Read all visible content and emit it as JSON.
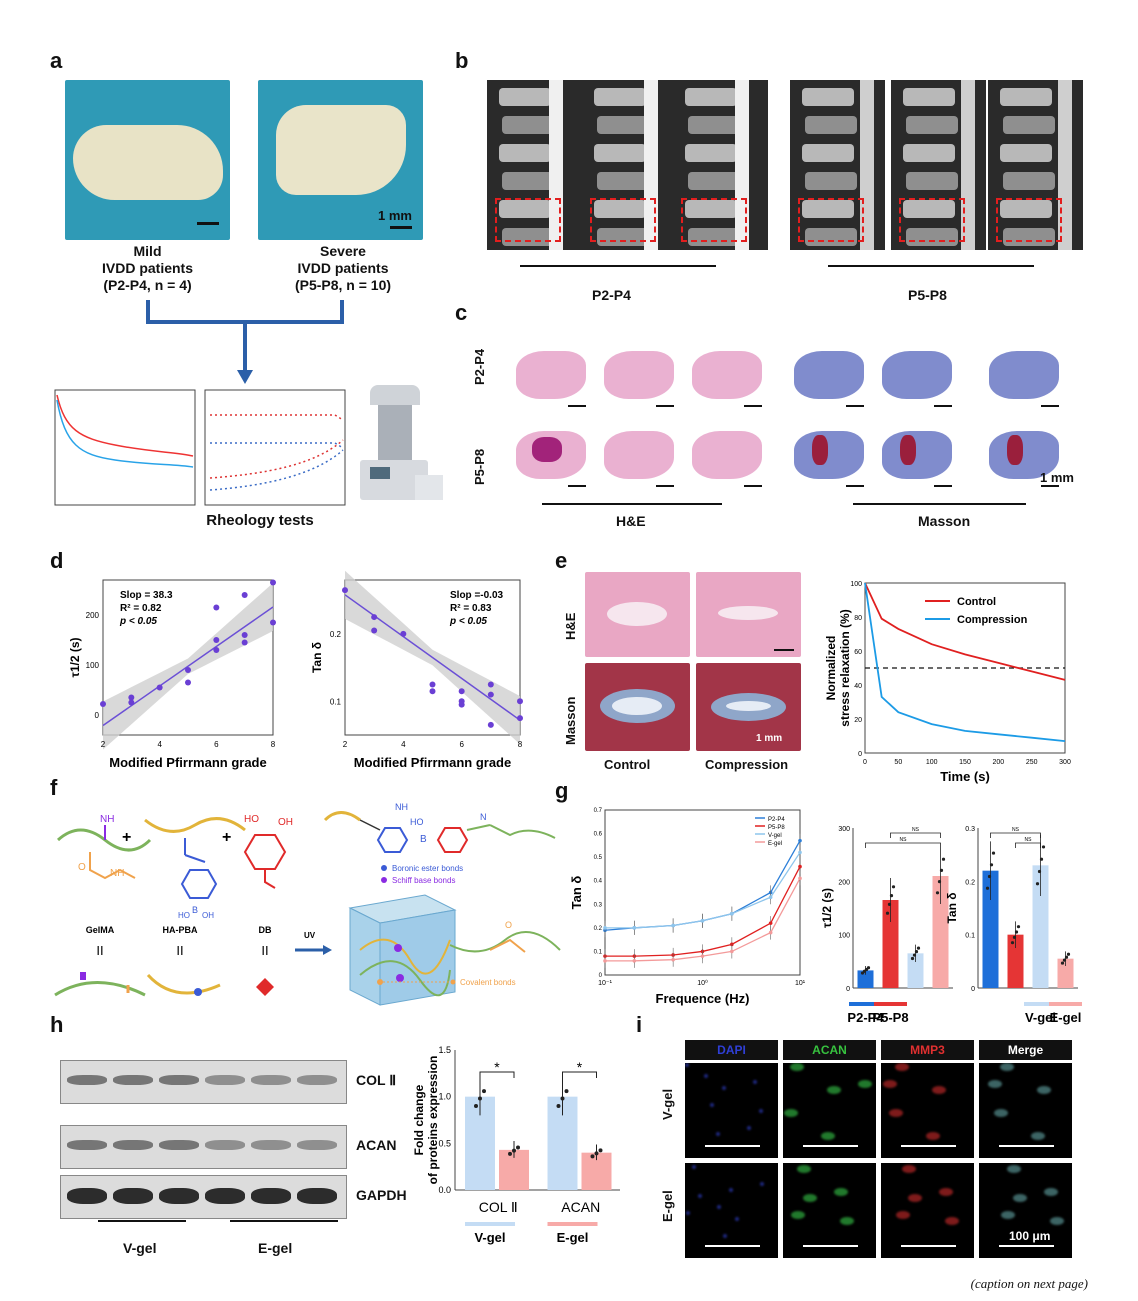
{
  "panels": {
    "a": {
      "label": "a",
      "scale_bar": "1 mm",
      "mild": [
        "Mild",
        "IVDD patients",
        "(P2-P4, n = 4)"
      ],
      "severe": [
        "Severe",
        "IVDD patients",
        "(P5-P8, n = 10)"
      ],
      "rheology": "Rheology tests"
    },
    "b": {
      "label": "b",
      "group1": "P2-P4",
      "group2": "P5-P8"
    },
    "c": {
      "label": "c",
      "row1": "P2-P4",
      "row2": "P5-P8",
      "stain1": "H&E",
      "stain2": "Masson",
      "scale_bar": "1 mm"
    },
    "d": {
      "label": "d",
      "left_stats": [
        "Slop = 38.3",
        "R² = 0.82",
        "p < 0.05"
      ],
      "right_stats": [
        "Slop =-0.03",
        "R² = 0.83",
        "p < 0.05"
      ],
      "left_ylabel": "τ1/2 (s)",
      "right_ylabel": "Tan δ",
      "xlabel": "Modified Pfirrmann grade"
    },
    "e": {
      "label": "e",
      "row1": "H&E",
      "row2": "Masson",
      "col1": "Control",
      "col2": "Compression",
      "scale_bar": "1 mm",
      "ylabel1": "Normalized",
      "ylabel2": "stress relaxation (%)",
      "xlabel": "Time (s)",
      "legend": [
        "Control",
        "Compression"
      ]
    },
    "f": {
      "label": "f",
      "names": [
        "GelMA",
        "HA-PBA",
        "DB"
      ],
      "plus": "+",
      "uv": "UV",
      "eq": "II",
      "bonds": [
        "Boronic ester bonds",
        "Schiff base bonds",
        "Covalent bonds"
      ]
    },
    "g": {
      "label": "g",
      "ylabel": "Tan δ",
      "xlabel": "Frequence (Hz)",
      "legend": [
        "P2-P4",
        "P5-P8",
        "V-gel",
        "E-gel"
      ],
      "bar1_ylabel": "τ1/2 (s)",
      "bar2_ylabel": "Tan δ",
      "ns": "NS",
      "groups": [
        "P2-P4",
        "P5-P8",
        "V-gel",
        "E-gel"
      ]
    },
    "h": {
      "label": "h",
      "bands": [
        "COL Ⅱ",
        "ACAN",
        "GAPDH"
      ],
      "lanes": [
        "V-gel",
        "E-gel"
      ],
      "ylabel1": "Fold change",
      "ylabel2": "of proteins expression",
      "categories": [
        "COL Ⅱ",
        "ACAN"
      ],
      "legend": [
        "V-gel",
        "E-gel"
      ],
      "star": "*"
    },
    "i": {
      "label": "i",
      "headers": [
        "DAPI",
        "ACAN",
        "MMP3",
        "Merge"
      ],
      "rows": [
        "V-gel",
        "E-gel"
      ],
      "scale_bar": "100 μm"
    }
  },
  "caption": "(caption on next page)",
  "chart_data": [
    {
      "type": "scatter",
      "x": [
        2,
        3,
        3,
        4,
        5,
        5,
        6,
        6,
        6,
        7,
        7,
        7,
        8,
        8
      ],
      "y": [
        22,
        25,
        35,
        55,
        65,
        90,
        130,
        150,
        215,
        145,
        160,
        240,
        185,
        265
      ],
      "xlim": [
        2,
        8
      ],
      "ylim": [
        -40,
        270
      ],
      "xlabel": "Modified Pfirrmann grade",
      "ylabel": "τ1/2 (s)"
    },
    {
      "type": "scatter",
      "x": [
        2,
        3,
        3,
        4,
        5,
        5,
        6,
        6,
        6,
        7,
        7,
        7,
        8,
        8
      ],
      "y": [
        0.265,
        0.225,
        0.205,
        0.2,
        0.125,
        0.115,
        0.115,
        0.1,
        0.095,
        0.125,
        0.11,
        0.065,
        0.1,
        0.075
      ],
      "xlim": [
        2,
        8
      ],
      "ylim": [
        0.05,
        0.28
      ],
      "xlabel": "Modified Pfirrmann grade",
      "ylabel": "Tan δ"
    },
    {
      "type": "line",
      "x": [
        0,
        25,
        50,
        100,
        150,
        200,
        250,
        300
      ],
      "xlim": [
        0,
        300
      ],
      "ylim": [
        0,
        100
      ],
      "series": [
        {
          "name": "Control",
          "values": [
            100,
            79,
            73,
            64,
            58,
            53,
            48,
            43
          ]
        },
        {
          "name": "Compression",
          "values": [
            100,
            33,
            24,
            17,
            13,
            11,
            9,
            7
          ]
        }
      ],
      "xlabel": "Time (s)",
      "ylabel": "Normalized stress relaxation (%)"
    },
    {
      "type": "line",
      "x": [
        0.1,
        0.2,
        0.5,
        1,
        2,
        5,
        10
      ],
      "series": [
        {
          "name": "P2-P4",
          "values": [
            0.19,
            0.2,
            0.21,
            0.23,
            0.26,
            0.35,
            0.57
          ]
        },
        {
          "name": "P5-P8",
          "values": [
            0.08,
            0.08,
            0.085,
            0.1,
            0.13,
            0.22,
            0.46
          ]
        },
        {
          "name": "V-gel",
          "values": [
            0.2,
            0.2,
            0.21,
            0.23,
            0.26,
            0.33,
            0.52
          ]
        },
        {
          "name": "E-gel",
          "values": [
            0.06,
            0.06,
            0.065,
            0.08,
            0.1,
            0.18,
            0.41
          ]
        }
      ],
      "xlabel": "Frequence (Hz)",
      "ylabel": "Tan δ",
      "ylim": [
        0,
        0.7
      ]
    },
    {
      "type": "bar",
      "categories": [
        "P2-P4",
        "P5-P8",
        "V-gel",
        "E-gel"
      ],
      "values": [
        33,
        165,
        65,
        210
      ],
      "ylim": [
        0,
        300
      ],
      "ylabel": "τ1/2 (s)"
    },
    {
      "type": "bar",
      "categories": [
        "P2-P4",
        "P5-P8",
        "V-gel",
        "E-gel"
      ],
      "values": [
        0.22,
        0.1,
        0.23,
        0.055
      ],
      "ylim": [
        0,
        0.3
      ],
      "ylabel": "Tan δ"
    },
    {
      "type": "bar",
      "categories": [
        "COL Ⅱ",
        "ACAN"
      ],
      "series": [
        {
          "name": "V-gel",
          "values": [
            1.0,
            1.0
          ]
        },
        {
          "name": "E-gel",
          "values": [
            0.43,
            0.4
          ]
        }
      ],
      "ylim": [
        0,
        1.5
      ],
      "ylabel": "Fold change of proteins expression"
    }
  ]
}
